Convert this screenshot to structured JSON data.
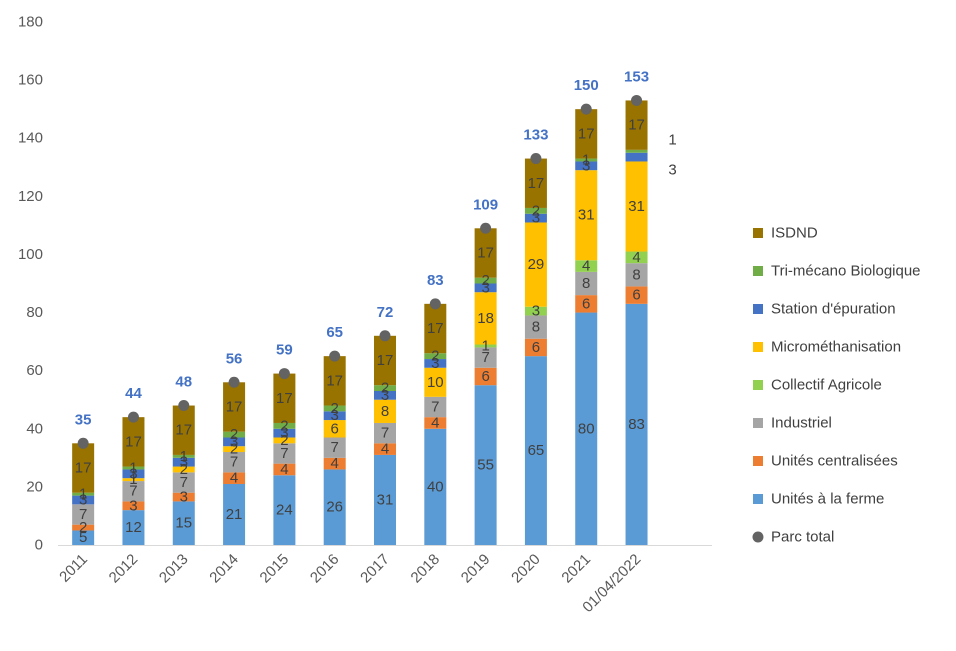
{
  "chart_data": {
    "type": "bar",
    "stacked": true,
    "title": "",
    "xlabel": "",
    "ylabel": "",
    "ylim": [
      0,
      180
    ],
    "yticks": [
      0,
      20,
      40,
      60,
      80,
      100,
      120,
      140,
      160,
      180
    ],
    "grid": false,
    "legend": "right",
    "categories": [
      "2011",
      "2012",
      "2013",
      "2014",
      "2015",
      "2016",
      "2017",
      "2018",
      "2019",
      "2020",
      "2021",
      "01/04/2022"
    ],
    "series": [
      {
        "name": "Unités à la ferme",
        "color": "#5B9BD5",
        "values": [
          5,
          12,
          15,
          21,
          24,
          26,
          31,
          40,
          55,
          65,
          80,
          83
        ]
      },
      {
        "name": "Unités centralisées",
        "color": "#ED7D31",
        "values": [
          2,
          3,
          3,
          4,
          4,
          4,
          4,
          4,
          6,
          6,
          6,
          6
        ]
      },
      {
        "name": "Industriel",
        "color": "#A5A5A5",
        "values": [
          7,
          7,
          7,
          7,
          7,
          7,
          7,
          7,
          7,
          8,
          8,
          8
        ]
      },
      {
        "name": "Collectif Agricole",
        "color": "#92D050",
        "values": [
          0,
          0,
          0,
          0,
          0,
          0,
          0,
          0,
          1,
          3,
          4,
          4
        ]
      },
      {
        "name": "Microméthanisation",
        "color": "#FFC000",
        "values": [
          0,
          1,
          2,
          2,
          2,
          6,
          8,
          10,
          18,
          29,
          31,
          31
        ]
      },
      {
        "name": "Station d'épuration",
        "color": "#4472C4",
        "values": [
          3,
          3,
          3,
          3,
          3,
          3,
          3,
          3,
          3,
          3,
          3,
          3
        ]
      },
      {
        "name": "Tri-mécano Biologique",
        "color": "#70AD47",
        "values": [
          1,
          1,
          1,
          2,
          2,
          2,
          2,
          2,
          2,
          2,
          1,
          1
        ]
      },
      {
        "name": "ISDND",
        "color": "#997300",
        "values": [
          17,
          17,
          17,
          17,
          17,
          17,
          17,
          17,
          17,
          17,
          17,
          17
        ]
      }
    ],
    "totals": {
      "name": "Parc total",
      "color": "#636363",
      "label_color": "#4472C4",
      "values": [
        35,
        44,
        48,
        56,
        59,
        65,
        72,
        83,
        109,
        133,
        150,
        153
      ]
    }
  }
}
